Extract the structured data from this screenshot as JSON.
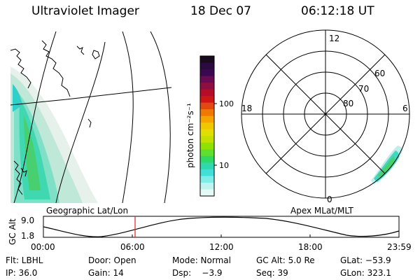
{
  "header": {
    "instrument": "Ultraviolet Imager",
    "date": "18 Dec 07",
    "time": "06:12:18 UT"
  },
  "colorbar": {
    "label": "photon cm⁻²s⁻¹",
    "ticks": [
      "100",
      "10"
    ],
    "colors": [
      "#1a0a1e",
      "#2a0a40",
      "#3a0850",
      "#6a0a50",
      "#8e0f3f",
      "#b50d25",
      "#d01515",
      "#e04a10",
      "#f07a00",
      "#f5a500",
      "#f0c800",
      "#e0e000",
      "#c4e000",
      "#90e000",
      "#5ee030",
      "#30d868",
      "#30d8b0",
      "#40e0d8",
      "#80ece8",
      "#bff3f0",
      "#e8f8f7"
    ]
  },
  "left_map": {
    "caption": "Geographic Lat/Lon"
  },
  "polar_map": {
    "caption": "Apex MLat/MLT",
    "mlt_labels": {
      "top": "12",
      "left": "18",
      "right": "6",
      "bottom": "0"
    },
    "mlat_labels": [
      "60",
      "70",
      "80"
    ]
  },
  "timeline": {
    "axis_label": "GC Alt",
    "y_top": "9.0",
    "y_bottom": "1.8",
    "x_ticks": [
      "00:00",
      "06:00",
      "12:00",
      "18:00",
      "23:59"
    ],
    "marker_time": "06:12",
    "marker_color": "#e02020"
  },
  "info": {
    "filter": "Flt: LBHL",
    "door": "Door: Open",
    "mode": "Mode: Normal",
    "gc_alt": "GC Alt: 5.0 Re",
    "glat": "GLat: −53.9",
    "ip": "IP: 36.0",
    "gain": "Gain: 14",
    "dsp": "Dsp:    −3.9",
    "seq": "Seq: 39",
    "glon": "GLon: 323.1"
  }
}
